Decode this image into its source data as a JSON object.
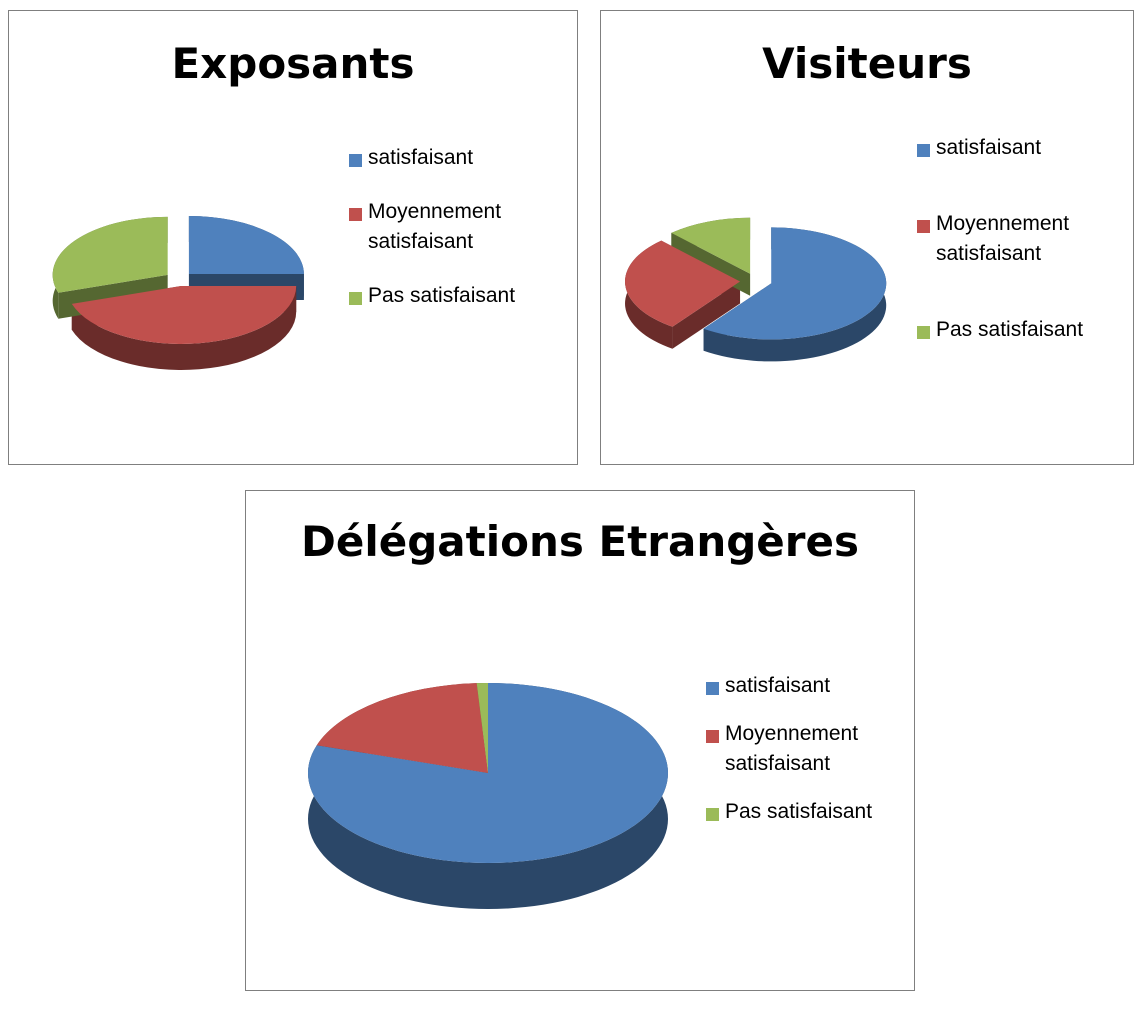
{
  "chart_data": [
    {
      "type": "pie",
      "title": "Exposants",
      "categories": [
        "satisfaisant",
        "Moyennement satisfaisant",
        "Pas satisfaisant"
      ],
      "values": [
        25,
        45,
        30
      ],
      "colors": [
        "#4f81bd",
        "#c0504d",
        "#9bbb59"
      ],
      "exploded": true
    },
    {
      "type": "pie",
      "title": "Visiteurs",
      "categories": [
        "satisfaisant",
        "Moyennement satisfaisant",
        "Pas satisfaisant"
      ],
      "values": [
        60,
        28,
        12
      ],
      "colors": [
        "#4f81bd",
        "#c0504d",
        "#9bbb59"
      ],
      "exploded": true
    },
    {
      "type": "pie",
      "title": "Délégations Etrangères",
      "categories": [
        "satisfaisant",
        "Moyennement satisfaisant",
        "Pas satisfaisant"
      ],
      "values": [
        80,
        19,
        1
      ],
      "colors": [
        "#4f81bd",
        "#c0504d",
        "#9bbb59"
      ],
      "exploded": false
    }
  ]
}
